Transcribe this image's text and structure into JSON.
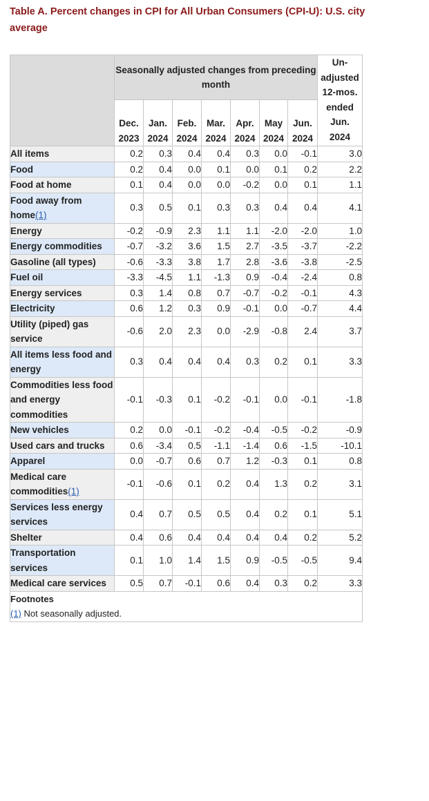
{
  "caption": "Table A. Percent changes in CPI for All Urban Consumers (CPI-U): U.S. city average",
  "header": {
    "group_label": "Seasonally adjusted changes from preceding month",
    "months": [
      {
        "month": "Dec.",
        "year": "2023"
      },
      {
        "month": "Jan.",
        "year": "2024"
      },
      {
        "month": "Feb.",
        "year": "2024"
      },
      {
        "month": "Mar.",
        "year": "2024"
      },
      {
        "month": "Apr.",
        "year": "2024"
      },
      {
        "month": "May",
        "year": "2024"
      },
      {
        "month": "Jun.",
        "year": "2024"
      }
    ],
    "unadjusted_label_lines": [
      "Un-",
      "adjusted",
      "12-mos.",
      "ended",
      "Jun.",
      "2024"
    ]
  },
  "rows": [
    {
      "label": "All items",
      "footnote": "",
      "level": 0,
      "shade": "gray",
      "values": [
        "0.2",
        "0.3",
        "0.4",
        "0.4",
        "0.3",
        "0.0",
        "-0.1"
      ],
      "unadjusted": "3.0"
    },
    {
      "label": "Food",
      "footnote": "",
      "level": 1,
      "shade": "blue",
      "values": [
        "0.2",
        "0.4",
        "0.0",
        "0.1",
        "0.0",
        "0.1",
        "0.2"
      ],
      "unadjusted": "2.2"
    },
    {
      "label": "Food at home",
      "footnote": "",
      "level": 2,
      "shade": "gray",
      "values": [
        "0.1",
        "0.4",
        "0.0",
        "0.0",
        "-0.2",
        "0.0",
        "0.1"
      ],
      "unadjusted": "1.1"
    },
    {
      "label": "Food away from home",
      "footnote": "(1)",
      "level": 2,
      "shade": "blue",
      "values": [
        "0.3",
        "0.5",
        "0.1",
        "0.3",
        "0.3",
        "0.4",
        "0.4"
      ],
      "unadjusted": "4.1"
    },
    {
      "label": "Energy",
      "footnote": "",
      "level": 1,
      "shade": "gray",
      "values": [
        "-0.2",
        "-0.9",
        "2.3",
        "1.1",
        "1.1",
        "-2.0",
        "-2.0"
      ],
      "unadjusted": "1.0"
    },
    {
      "label": "Energy commodities",
      "footnote": "",
      "level": 2,
      "shade": "blue",
      "values": [
        "-0.7",
        "-3.2",
        "3.6",
        "1.5",
        "2.7",
        "-3.5",
        "-3.7"
      ],
      "unadjusted": "-2.2"
    },
    {
      "label": "Gasoline (all types)",
      "footnote": "",
      "level": 3,
      "shade": "gray",
      "values": [
        "-0.6",
        "-3.3",
        "3.8",
        "1.7",
        "2.8",
        "-3.6",
        "-3.8"
      ],
      "unadjusted": "-2.5"
    },
    {
      "label": "Fuel oil",
      "footnote": "",
      "level": 3,
      "shade": "blue",
      "values": [
        "-3.3",
        "-4.5",
        "1.1",
        "-1.3",
        "0.9",
        "-0.4",
        "-2.4"
      ],
      "unadjusted": "0.8"
    },
    {
      "label": "Energy services",
      "footnote": "",
      "level": 2,
      "shade": "gray",
      "values": [
        "0.3",
        "1.4",
        "0.8",
        "0.7",
        "-0.7",
        "-0.2",
        "-0.1"
      ],
      "unadjusted": "4.3"
    },
    {
      "label": "Electricity",
      "footnote": "",
      "level": 3,
      "shade": "blue",
      "values": [
        "0.6",
        "1.2",
        "0.3",
        "0.9",
        "-0.1",
        "0.0",
        "-0.7"
      ],
      "unadjusted": "4.4"
    },
    {
      "label": "Utility (piped) gas service",
      "footnote": "",
      "level": 3,
      "shade": "gray",
      "values": [
        "-0.6",
        "2.0",
        "2.3",
        "0.0",
        "-2.9",
        "-0.8",
        "2.4"
      ],
      "unadjusted": "3.7"
    },
    {
      "label": "All items less food and energy",
      "footnote": "",
      "level": 1,
      "shade": "blue",
      "values": [
        "0.3",
        "0.4",
        "0.4",
        "0.4",
        "0.3",
        "0.2",
        "0.1"
      ],
      "unadjusted": "3.3"
    },
    {
      "label": "Commodities less food and energy commodities",
      "footnote": "",
      "level": 2,
      "shade": "gray",
      "values": [
        "-0.1",
        "-0.3",
        "0.1",
        "-0.2",
        "-0.1",
        "0.0",
        "-0.1"
      ],
      "unadjusted": "-1.8"
    },
    {
      "label": "New vehicles",
      "footnote": "",
      "level": 3,
      "shade": "blue",
      "values": [
        "0.2",
        "0.0",
        "-0.1",
        "-0.2",
        "-0.4",
        "-0.5",
        "-0.2"
      ],
      "unadjusted": "-0.9"
    },
    {
      "label": "Used cars and trucks",
      "footnote": "",
      "level": 3,
      "shade": "gray",
      "values": [
        "0.6",
        "-3.4",
        "0.5",
        "-1.1",
        "-1.4",
        "0.6",
        "-1.5"
      ],
      "unadjusted": "-10.1"
    },
    {
      "label": "Apparel",
      "footnote": "",
      "level": 3,
      "shade": "blue",
      "values": [
        "0.0",
        "-0.7",
        "0.6",
        "0.7",
        "1.2",
        "-0.3",
        "0.1"
      ],
      "unadjusted": "0.8"
    },
    {
      "label": "Medical care commodities",
      "footnote": "(1)",
      "level": 3,
      "shade": "gray",
      "values": [
        "-0.1",
        "-0.6",
        "0.1",
        "0.2",
        "0.4",
        "1.3",
        "0.2"
      ],
      "unadjusted": "3.1"
    },
    {
      "label": "Services less energy services",
      "footnote": "",
      "level": 2,
      "shade": "blue",
      "values": [
        "0.4",
        "0.7",
        "0.5",
        "0.5",
        "0.4",
        "0.2",
        "0.1"
      ],
      "unadjusted": "5.1"
    },
    {
      "label": "Shelter",
      "footnote": "",
      "level": 3,
      "shade": "gray",
      "values": [
        "0.4",
        "0.6",
        "0.4",
        "0.4",
        "0.4",
        "0.4",
        "0.2"
      ],
      "unadjusted": "5.2"
    },
    {
      "label": "Transportation services",
      "footnote": "",
      "level": 3,
      "shade": "blue",
      "values": [
        "0.1",
        "1.0",
        "1.4",
        "1.5",
        "0.9",
        "-0.5",
        "-0.5"
      ],
      "unadjusted": "9.4"
    },
    {
      "label": "Medical care services",
      "footnote": "",
      "level": 3,
      "shade": "gray",
      "values": [
        "0.5",
        "0.7",
        "-0.1",
        "0.6",
        "0.4",
        "0.3",
        "0.2"
      ],
      "unadjusted": "3.3"
    }
  ],
  "footnotes": {
    "title": "Footnotes",
    "items": [
      {
        "marker": "(1)",
        "text": " Not seasonally adjusted."
      }
    ]
  },
  "colors": {
    "caption": "#8b1a1a",
    "header_shade": "#dcdcdc",
    "row_shade_blue": "#dde9f8",
    "row_shade_gray": "#efefef",
    "footnote_link": "#2a5db0",
    "border": "#c6c6c6"
  }
}
